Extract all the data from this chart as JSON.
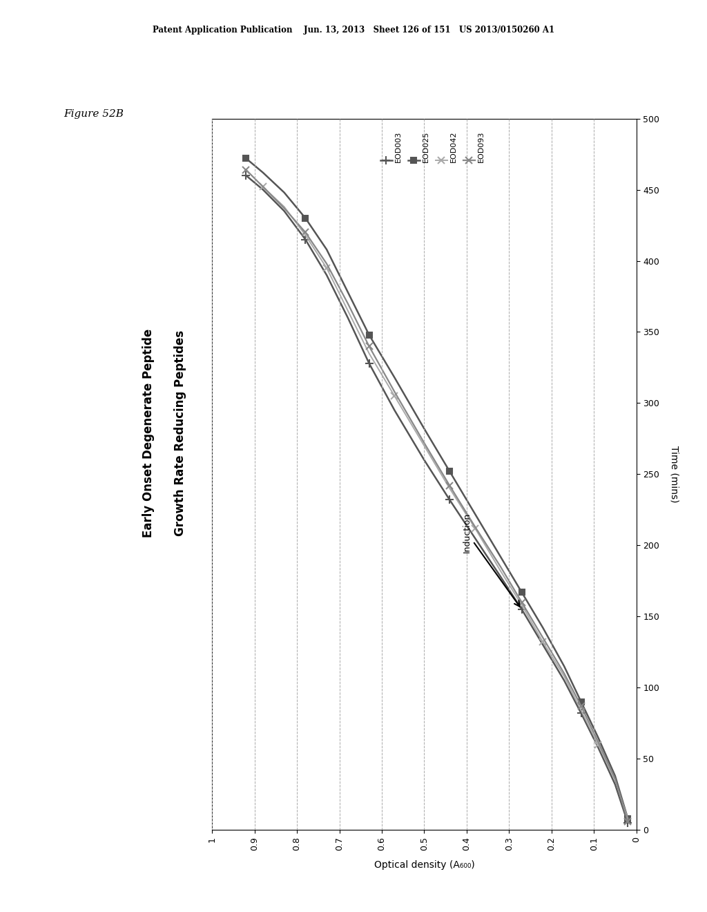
{
  "figure_label": "Figure 52B",
  "chart_title_line1": "Early Onset Degenerate Peptide",
  "chart_title_line2": "Growth Rate Reducing Peptides",
  "xlabel": "Optical density (A₆₀₀)",
  "ylabel": "Time (mins)",
  "xlim": [
    1.0,
    0.0
  ],
  "ylim": [
    0,
    500
  ],
  "xticks": [
    1.0,
    0.9,
    0.8,
    0.7,
    0.6,
    0.5,
    0.4,
    0.3,
    0.2,
    0.1,
    0.0
  ],
  "yticks": [
    0,
    50,
    100,
    150,
    200,
    250,
    300,
    350,
    400,
    450,
    500
  ],
  "induction_od": 0.3,
  "induction_time": 155,
  "series": [
    {
      "label": "EOD003",
      "color": "#555555",
      "marker": "+",
      "markersize": 8,
      "linewidth": 1.8,
      "markevery": 3,
      "od": [
        0.92,
        0.88,
        0.83,
        0.78,
        0.73,
        0.68,
        0.63,
        0.57,
        0.5,
        0.44,
        0.38,
        0.32,
        0.27,
        0.22,
        0.17,
        0.13,
        0.09,
        0.05,
        0.02
      ],
      "time": [
        460,
        450,
        435,
        415,
        390,
        360,
        328,
        295,
        260,
        232,
        205,
        178,
        155,
        130,
        105,
        82,
        58,
        32,
        5
      ]
    },
    {
      "label": "EOD025",
      "color": "#555555",
      "marker": "s",
      "markersize": 6,
      "linewidth": 1.8,
      "markevery": 3,
      "od": [
        0.92,
        0.88,
        0.83,
        0.78,
        0.73,
        0.68,
        0.63,
        0.57,
        0.5,
        0.44,
        0.38,
        0.32,
        0.27,
        0.22,
        0.17,
        0.13,
        0.09,
        0.05,
        0.02
      ],
      "time": [
        472,
        462,
        448,
        430,
        408,
        378,
        348,
        318,
        282,
        252,
        222,
        192,
        167,
        142,
        115,
        90,
        65,
        38,
        8
      ]
    },
    {
      "label": "EOD042",
      "color": "#aaaaaa",
      "marker": "x",
      "markersize": 7,
      "linewidth": 1.4,
      "markevery": 3,
      "od": [
        0.88,
        0.83,
        0.78,
        0.73,
        0.68,
        0.63,
        0.57,
        0.5,
        0.44,
        0.38,
        0.32,
        0.27,
        0.22,
        0.17,
        0.13,
        0.09,
        0.05,
        0.02
      ],
      "time": [
        452,
        438,
        418,
        395,
        365,
        335,
        305,
        270,
        240,
        212,
        182,
        158,
        132,
        108,
        84,
        60,
        35,
        8
      ]
    },
    {
      "label": "EOD093",
      "color": "#888888",
      "marker": "x",
      "markersize": 7,
      "linewidth": 1.6,
      "markevery": 3,
      "od": [
        0.92,
        0.88,
        0.83,
        0.78,
        0.73,
        0.68,
        0.63,
        0.57,
        0.5,
        0.44,
        0.38,
        0.32,
        0.27,
        0.22,
        0.17,
        0.13,
        0.09,
        0.05,
        0.02
      ],
      "time": [
        464,
        452,
        437,
        420,
        398,
        370,
        340,
        308,
        272,
        242,
        213,
        185,
        160,
        135,
        110,
        87,
        62,
        36,
        6
      ]
    }
  ],
  "background_color": "#ffffff",
  "header_text": "Patent Application Publication    Jun. 13, 2013   Sheet 126 of 151   US 2013/0150260 A1",
  "grid_color": "#aaaaaa",
  "grid_linestyle": "--",
  "grid_linewidth": 0.7
}
